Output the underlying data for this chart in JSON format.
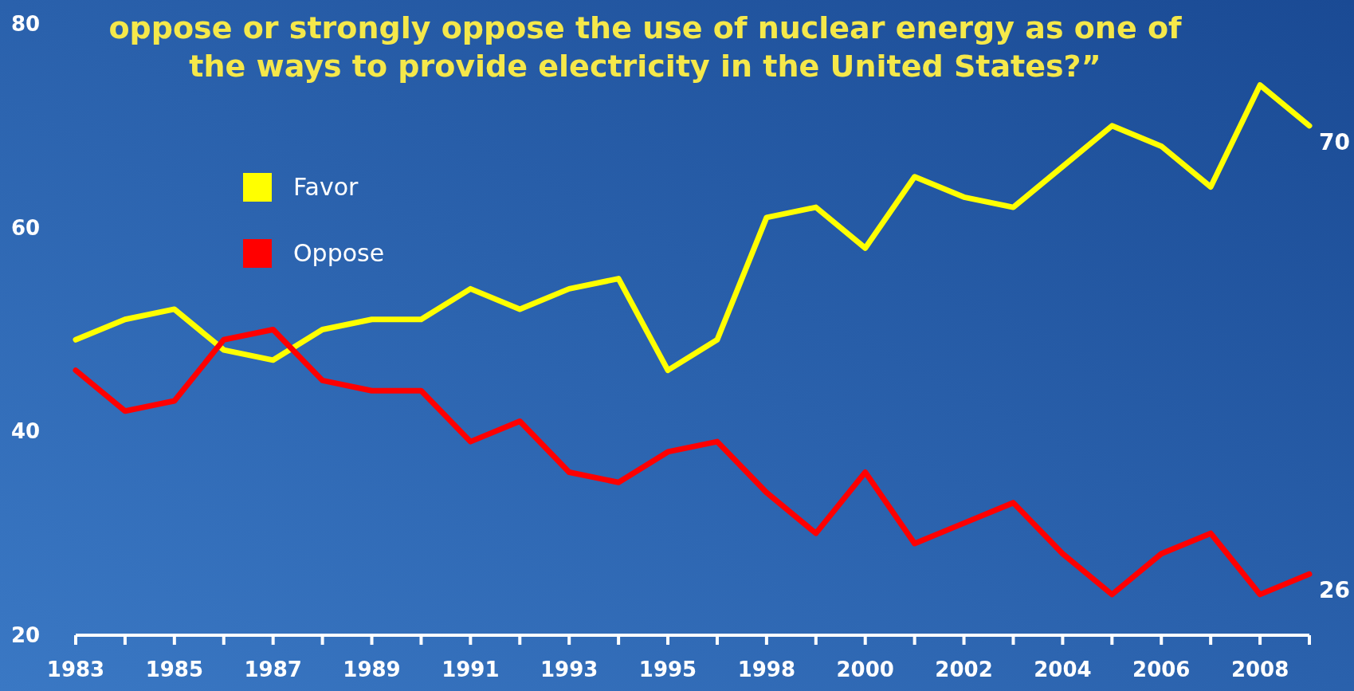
{
  "chart_data": {
    "type": "line",
    "title": "oppose or strongly oppose the use of nuclear energy as one of\nthe ways to provide electricity in the United States?”",
    "categories": [
      "1983",
      null,
      "1985",
      null,
      "1987",
      null,
      "1989",
      null,
      "1991",
      null,
      "1993",
      null,
      "1995",
      null,
      "1998",
      null,
      "2000",
      null,
      "2002",
      null,
      "2004",
      null,
      "2006",
      null,
      "2008",
      null
    ],
    "series": [
      {
        "name": "Favor",
        "color": "#ffff00",
        "values": [
          49,
          51,
          52,
          48,
          47,
          50,
          51,
          51,
          54,
          52,
          54,
          55,
          46,
          49,
          61,
          62,
          58,
          65,
          63,
          62,
          66,
          70,
          68,
          64,
          74,
          70
        ],
        "value_labels": [
          null,
          null,
          null,
          null,
          null,
          null,
          null,
          null,
          null,
          null,
          null,
          null,
          null,
          null,
          null,
          null,
          null,
          null,
          null,
          null,
          null,
          null,
          null,
          null,
          null,
          "70"
        ]
      },
      {
        "name": "Oppose",
        "color": "#ff0000",
        "values": [
          46,
          42,
          43,
          49,
          50,
          45,
          44,
          44,
          39,
          41,
          36,
          35,
          38,
          39,
          34,
          30,
          36,
          29,
          31,
          33,
          28,
          24,
          28,
          30,
          24,
          26
        ],
        "value_labels": [
          null,
          null,
          null,
          null,
          null,
          null,
          null,
          null,
          null,
          null,
          null,
          null,
          null,
          null,
          null,
          null,
          null,
          null,
          null,
          null,
          null,
          null,
          null,
          null,
          null,
          "26"
        ]
      }
    ],
    "ylim": [
      20,
      80
    ],
    "yticks": [
      20,
      40,
      60,
      80
    ],
    "legend": "top left",
    "marker": "none",
    "line_style": "solid"
  }
}
